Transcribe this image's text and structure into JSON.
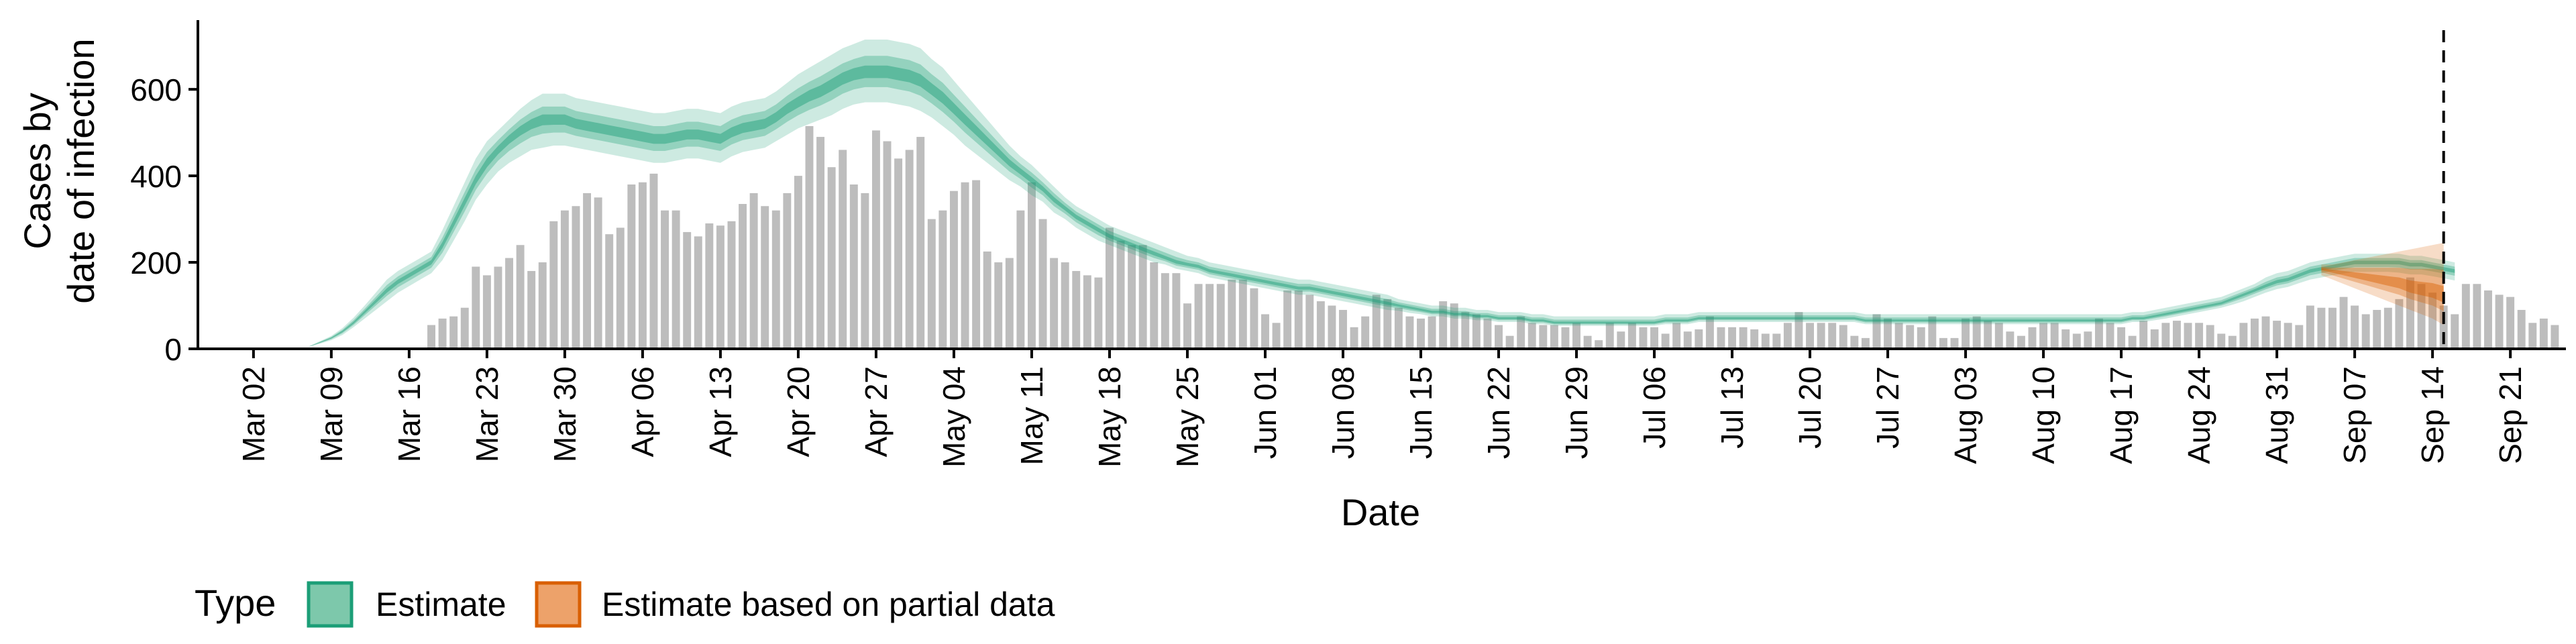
{
  "chart_data": {
    "type": "bar",
    "xlabel": "Date",
    "ylabel": [
      "Cases by",
      "date of infection"
    ],
    "ylim": [
      0,
      760
    ],
    "yticks": [
      0,
      200,
      400,
      600
    ],
    "xlim": [
      "2020-02-26",
      "2020-09-26"
    ],
    "xticks": [
      {
        "date": "2020-03-02",
        "label": "Mar 02"
      },
      {
        "date": "2020-03-09",
        "label": "Mar 09"
      },
      {
        "date": "2020-03-16",
        "label": "Mar 16"
      },
      {
        "date": "2020-03-23",
        "label": "Mar 23"
      },
      {
        "date": "2020-03-30",
        "label": "Mar 30"
      },
      {
        "date": "2020-04-06",
        "label": "Apr 06"
      },
      {
        "date": "2020-04-13",
        "label": "Apr 13"
      },
      {
        "date": "2020-04-20",
        "label": "Apr 20"
      },
      {
        "date": "2020-04-27",
        "label": "Apr 27"
      },
      {
        "date": "2020-05-04",
        "label": "May 04"
      },
      {
        "date": "2020-05-11",
        "label": "May 11"
      },
      {
        "date": "2020-05-18",
        "label": "May 18"
      },
      {
        "date": "2020-05-25",
        "label": "May 25"
      },
      {
        "date": "2020-06-01",
        "label": "Jun 01"
      },
      {
        "date": "2020-06-08",
        "label": "Jun 08"
      },
      {
        "date": "2020-06-15",
        "label": "Jun 15"
      },
      {
        "date": "2020-06-22",
        "label": "Jun 22"
      },
      {
        "date": "2020-06-29",
        "label": "Jun 29"
      },
      {
        "date": "2020-07-06",
        "label": "Jul 06"
      },
      {
        "date": "2020-07-13",
        "label": "Jul 13"
      },
      {
        "date": "2020-07-20",
        "label": "Jul 20"
      },
      {
        "date": "2020-07-27",
        "label": "Jul 27"
      },
      {
        "date": "2020-08-03",
        "label": "Aug 03"
      },
      {
        "date": "2020-08-10",
        "label": "Aug 10"
      },
      {
        "date": "2020-08-17",
        "label": "Aug 17"
      },
      {
        "date": "2020-08-24",
        "label": "Aug 24"
      },
      {
        "date": "2020-08-31",
        "label": "Aug 31"
      },
      {
        "date": "2020-09-07",
        "label": "Sep 07"
      },
      {
        "date": "2020-09-14",
        "label": "Sep 14"
      },
      {
        "date": "2020-09-21",
        "label": "Sep 21"
      }
    ],
    "vline_date": "2020-09-15",
    "legend": {
      "title": "Type",
      "position": "bottom-left",
      "entries": [
        {
          "label": "Estimate",
          "fill": "#7dc8ab",
          "stroke": "#1b9e77"
        },
        {
          "label": "Estimate based on partial data",
          "fill": "#eda26a",
          "stroke": "#d95f02"
        }
      ]
    },
    "colors": {
      "bars": "#bdbdbd",
      "estimate": "#1b9e77",
      "partial": "#d95f02",
      "vline": "#000000"
    },
    "bars": {
      "start_date": "2020-03-18",
      "values": [
        55,
        70,
        75,
        95,
        190,
        170,
        190,
        210,
        240,
        180,
        200,
        295,
        320,
        330,
        360,
        350,
        265,
        280,
        380,
        385,
        405,
        320,
        320,
        270,
        260,
        290,
        285,
        295,
        335,
        360,
        330,
        320,
        360,
        400,
        515,
        490,
        420,
        460,
        380,
        360,
        505,
        480,
        440,
        460,
        490,
        300,
        320,
        365,
        385,
        390,
        225,
        200,
        210,
        320,
        385,
        300,
        210,
        200,
        180,
        170,
        165,
        280,
        250,
        240,
        240,
        200,
        175,
        175,
        105,
        150,
        150,
        150,
        160,
        160,
        140,
        80,
        60,
        135,
        135,
        125,
        110,
        100,
        90,
        50,
        75,
        125,
        115,
        95,
        75,
        70,
        75,
        110,
        105,
        85,
        80,
        70,
        55,
        30,
        75,
        60,
        55,
        55,
        50,
        60,
        30,
        20,
        60,
        40,
        60,
        50,
        50,
        35,
        60,
        40,
        45,
        75,
        50,
        50,
        50,
        45,
        35,
        35,
        60,
        85,
        60,
        60,
        60,
        55,
        30,
        25,
        80,
        70,
        60,
        55,
        50,
        75,
        25,
        25,
        70,
        75,
        65,
        60,
        40,
        30,
        50,
        60,
        60,
        45,
        35,
        40,
        70,
        60,
        50,
        30,
        65,
        45,
        60,
        65,
        60,
        60,
        55,
        35,
        30,
        60,
        70,
        75,
        65,
        60,
        55,
        100,
        95,
        95,
        120,
        100,
        80,
        90,
        95,
        115,
        165,
        150,
        130,
        100,
        80,
        150,
        150,
        135,
        125,
        120,
        90,
        60,
        70,
        55
      ]
    },
    "estimate": {
      "start_date": "2020-03-07",
      "median": [
        5,
        15,
        25,
        40,
        60,
        85,
        110,
        135,
        155,
        170,
        185,
        200,
        240,
        290,
        340,
        390,
        430,
        460,
        485,
        505,
        520,
        530,
        530,
        530,
        520,
        515,
        510,
        505,
        500,
        495,
        490,
        485,
        485,
        490,
        495,
        495,
        490,
        485,
        500,
        510,
        515,
        520,
        535,
        555,
        570,
        585,
        595,
        610,
        625,
        635,
        640,
        640,
        640,
        635,
        630,
        620,
        600,
        580,
        555,
        530,
        505,
        480,
        455,
        430,
        410,
        390,
        370,
        345,
        325,
        305,
        290,
        275,
        260,
        250,
        240,
        230,
        220,
        210,
        200,
        195,
        190,
        180,
        175,
        170,
        165,
        160,
        155,
        150,
        145,
        140,
        140,
        135,
        130,
        125,
        120,
        115,
        110,
        105,
        100,
        95,
        90,
        85,
        85,
        80,
        80,
        75,
        75,
        70,
        70,
        70,
        65,
        65,
        60,
        60,
        60,
        60,
        60,
        60,
        60,
        60,
        60,
        60,
        65,
        65,
        65,
        70,
        70,
        70,
        70,
        70,
        70,
        70,
        70,
        70,
        70,
        70,
        70,
        70,
        70,
        70,
        65,
        65,
        65,
        65,
        65,
        65,
        65,
        65,
        65,
        65,
        65,
        65,
        65,
        65,
        65,
        65,
        65,
        65,
        65,
        65,
        65,
        65,
        65,
        65,
        70,
        70,
        75,
        80,
        85,
        90,
        95,
        100,
        105,
        115,
        125,
        135,
        145,
        155,
        160,
        170,
        180,
        185,
        190,
        195,
        200,
        200,
        200,
        200,
        200,
        195,
        195,
        190,
        185,
        180
      ],
      "lower": [
        5,
        12,
        20,
        32,
        50,
        70,
        90,
        110,
        130,
        145,
        160,
        175,
        205,
        250,
        295,
        345,
        380,
        410,
        430,
        445,
        460,
        465,
        470,
        470,
        465,
        460,
        455,
        450,
        445,
        440,
        435,
        430,
        430,
        435,
        440,
        440,
        435,
        430,
        445,
        455,
        460,
        465,
        480,
        495,
        510,
        520,
        530,
        540,
        555,
        565,
        570,
        570,
        570,
        565,
        560,
        550,
        535,
        515,
        495,
        470,
        450,
        430,
        410,
        390,
        375,
        355,
        340,
        315,
        300,
        280,
        265,
        250,
        240,
        230,
        220,
        210,
        200,
        195,
        185,
        180,
        175,
        165,
        160,
        155,
        150,
        145,
        140,
        135,
        130,
        125,
        125,
        120,
        115,
        110,
        105,
        100,
        95,
        90,
        88,
        83,
        80,
        75,
        75,
        70,
        70,
        66,
        66,
        62,
        62,
        62,
        57,
        57,
        53,
        53,
        53,
        53,
        53,
        53,
        53,
        53,
        53,
        53,
        57,
        57,
        57,
        62,
        62,
        62,
        62,
        62,
        62,
        62,
        62,
        62,
        62,
        62,
        62,
        62,
        62,
        62,
        57,
        57,
        57,
        57,
        57,
        57,
        57,
        57,
        57,
        57,
        57,
        57,
        57,
        57,
        57,
        57,
        57,
        57,
        57,
        57,
        57,
        57,
        57,
        57,
        62,
        62,
        66,
        70,
        75,
        80,
        85,
        90,
        95,
        102,
        110,
        120,
        130,
        138,
        143,
        152,
        160,
        165,
        170,
        174,
        178,
        178,
        178,
        178,
        176,
        172,
        172,
        168,
        163,
        158
      ],
      "upper": [
        6,
        18,
        30,
        48,
        72,
        100,
        130,
        160,
        180,
        195,
        210,
        225,
        275,
        330,
        385,
        440,
        480,
        505,
        530,
        555,
        575,
        590,
        590,
        590,
        580,
        575,
        570,
        565,
        560,
        555,
        550,
        545,
        545,
        550,
        555,
        555,
        550,
        545,
        560,
        570,
        575,
        580,
        595,
        615,
        635,
        650,
        665,
        680,
        695,
        705,
        715,
        715,
        715,
        710,
        705,
        695,
        670,
        650,
        620,
        590,
        560,
        530,
        500,
        470,
        445,
        425,
        400,
        375,
        350,
        330,
        315,
        300,
        285,
        275,
        265,
        255,
        245,
        235,
        225,
        215,
        210,
        200,
        195,
        190,
        185,
        180,
        175,
        170,
        165,
        160,
        160,
        155,
        150,
        145,
        140,
        135,
        130,
        125,
        115,
        110,
        105,
        100,
        100,
        95,
        95,
        90,
        90,
        85,
        85,
        85,
        80,
        80,
        75,
        75,
        75,
        75,
        75,
        75,
        75,
        75,
        75,
        75,
        80,
        80,
        80,
        85,
        85,
        85,
        85,
        85,
        85,
        85,
        85,
        85,
        85,
        85,
        85,
        85,
        85,
        85,
        80,
        80,
        80,
        80,
        80,
        80,
        80,
        80,
        80,
        80,
        80,
        80,
        80,
        80,
        80,
        80,
        80,
        80,
        80,
        80,
        80,
        80,
        80,
        80,
        85,
        85,
        90,
        95,
        100,
        105,
        110,
        115,
        120,
        130,
        140,
        150,
        165,
        175,
        180,
        190,
        200,
        205,
        210,
        215,
        220,
        220,
        220,
        220,
        220,
        215,
        215,
        210,
        205,
        200
      ]
    },
    "partial": {
      "start_date": "2020-09-04",
      "median": [
        185,
        180,
        175,
        170,
        165,
        160,
        155,
        150,
        140,
        135,
        130,
        120
      ],
      "lower": [
        170,
        160,
        150,
        140,
        130,
        120,
        110,
        100,
        90,
        80,
        70,
        55
      ],
      "upper": [
        195,
        195,
        200,
        205,
        210,
        215,
        220,
        225,
        230,
        235,
        240,
        245
      ]
    }
  }
}
